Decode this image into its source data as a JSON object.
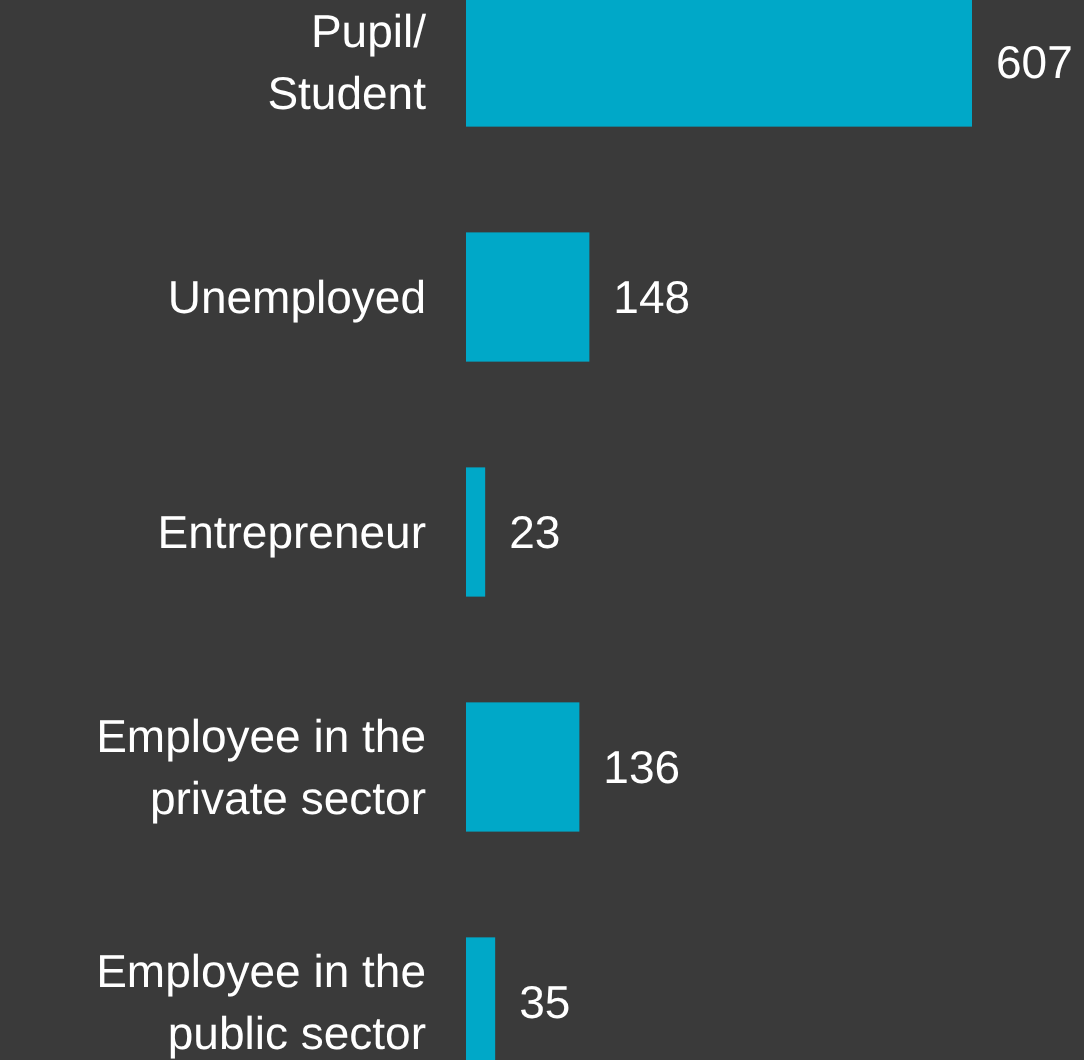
{
  "chart_data": {
    "type": "bar",
    "orientation": "horizontal",
    "categories": [
      "Pupil/\nStudent",
      "Unemployed",
      "Entrepreneur",
      "Employee in the\nprivate sector",
      "Employee in the\npublic sector"
    ],
    "values": [
      607,
      148,
      23,
      136,
      35
    ],
    "color": "#00a8c8",
    "data_labels": true
  }
}
